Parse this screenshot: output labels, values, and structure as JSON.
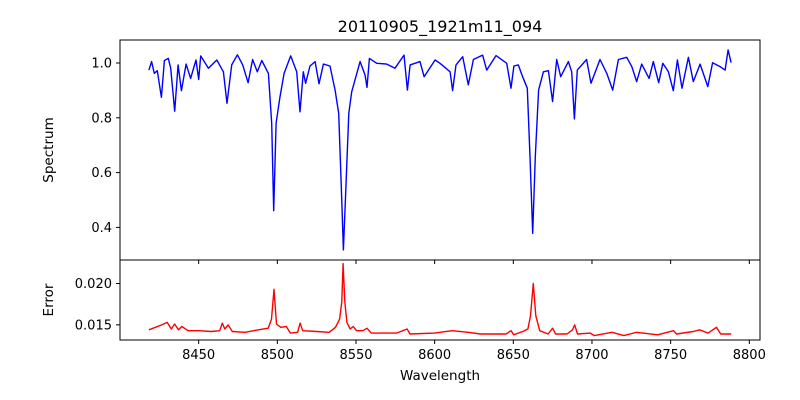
{
  "chart_data": [
    {
      "type": "line",
      "panel": "top",
      "title": "20110905_1921m11_094",
      "xlabel": "",
      "ylabel": "Spectrum",
      "xlim": [
        8400,
        8806.8
      ],
      "ylim": [
        0.281,
        1.084
      ],
      "xticks": [
        8450,
        8500,
        8550,
        8600,
        8650,
        8700,
        8750,
        8800
      ],
      "xtick_labels_shown": false,
      "yticks": [
        0.4,
        0.6,
        0.8,
        1.0
      ],
      "ytick_labels": [
        "0.4",
        "0.6",
        "0.8",
        "1.0"
      ],
      "grid": false,
      "series": [
        {
          "name": "Spectrum",
          "color": "#0000ff",
          "points": [
            [
              8418.4,
              0.974
            ],
            [
              8420.1,
              1.005
            ],
            [
              8421.8,
              0.962
            ],
            [
              8423.7,
              0.972
            ],
            [
              8426.3,
              0.875
            ],
            [
              8428.2,
              1.009
            ],
            [
              8430.7,
              1.017
            ],
            [
              8432.2,
              0.981
            ],
            [
              8434.8,
              0.824
            ],
            [
              8436.9,
              0.993
            ],
            [
              8439.0,
              0.899
            ],
            [
              8442.0,
              0.996
            ],
            [
              8444.9,
              0.944
            ],
            [
              8448.3,
              1.011
            ],
            [
              8450.0,
              0.94
            ],
            [
              8451.3,
              1.026
            ],
            [
              8456.2,
              0.981
            ],
            [
              8461.5,
              1.011
            ],
            [
              8465.7,
              0.968
            ],
            [
              8468.0,
              0.853
            ],
            [
              8471.0,
              0.993
            ],
            [
              8474.6,
              1.03
            ],
            [
              8478.0,
              0.993
            ],
            [
              8481.4,
              0.928
            ],
            [
              8484.3,
              1.013
            ],
            [
              8487.3,
              0.968
            ],
            [
              8490.1,
              1.009
            ],
            [
              8494.3,
              0.962
            ],
            [
              8496.4,
              0.78
            ],
            [
              8497.7,
              0.461
            ],
            [
              8499.2,
              0.78
            ],
            [
              8501.7,
              0.877
            ],
            [
              8504.3,
              0.962
            ],
            [
              8508.5,
              1.026
            ],
            [
              8512.3,
              0.968
            ],
            [
              8514.4,
              0.822
            ],
            [
              8516.5,
              0.968
            ],
            [
              8518.0,
              0.926
            ],
            [
              8520.8,
              0.989
            ],
            [
              8524.0,
              1.005
            ],
            [
              8526.5,
              0.924
            ],
            [
              8529.3,
              0.996
            ],
            [
              8533.5,
              0.989
            ],
            [
              8536.7,
              0.901
            ],
            [
              8539.0,
              0.816
            ],
            [
              8540.7,
              0.537
            ],
            [
              8542.0,
              0.318
            ],
            [
              8543.5,
              0.537
            ],
            [
              8545.4,
              0.816
            ],
            [
              8547.3,
              0.895
            ],
            [
              8550.5,
              0.962
            ],
            [
              8552.6,
              1.005
            ],
            [
              8555.8,
              0.956
            ],
            [
              8557.0,
              0.911
            ],
            [
              8558.5,
              1.017
            ],
            [
              8563.2,
              0.999
            ],
            [
              8569.5,
              0.996
            ],
            [
              8574.8,
              0.981
            ],
            [
              8580.5,
              1.029
            ],
            [
              8582.7,
              0.901
            ],
            [
              8584.4,
              0.993
            ],
            [
              8590.7,
              1.005
            ],
            [
              8593.3,
              0.95
            ],
            [
              8600.3,
              1.011
            ],
            [
              8603.4,
              0.999
            ],
            [
              8609.8,
              0.968
            ],
            [
              8611.4,
              0.899
            ],
            [
              8613.6,
              0.993
            ],
            [
              8617.8,
              1.023
            ],
            [
              8621.4,
              0.92
            ],
            [
              8624.6,
              1.013
            ],
            [
              8630.5,
              1.029
            ],
            [
              8633.1,
              0.974
            ],
            [
              8639.0,
              1.027
            ],
            [
              8645.8,
              0.999
            ],
            [
              8648.5,
              0.908
            ],
            [
              8650.4,
              0.989
            ],
            [
              8653.2,
              0.993
            ],
            [
              8655.9,
              0.95
            ],
            [
              8658.9,
              0.908
            ],
            [
              8660.6,
              0.658
            ],
            [
              8662.3,
              0.378
            ],
            [
              8664.0,
              0.658
            ],
            [
              8666.1,
              0.901
            ],
            [
              8669.1,
              0.968
            ],
            [
              8672.3,
              0.972
            ],
            [
              8675.0,
              0.859
            ],
            [
              8677.6,
              1.013
            ],
            [
              8680.1,
              0.95
            ],
            [
              8685.0,
              1.005
            ],
            [
              8687.1,
              0.968
            ],
            [
              8688.8,
              0.796
            ],
            [
              8690.7,
              0.974
            ],
            [
              8696.6,
              1.013
            ],
            [
              8699.4,
              0.926
            ],
            [
              8705.1,
              1.013
            ],
            [
              8709.4,
              0.962
            ],
            [
              8713.2,
              0.901
            ],
            [
              8716.8,
              1.013
            ],
            [
              8722.1,
              1.021
            ],
            [
              8725.3,
              0.987
            ],
            [
              8728.4,
              0.932
            ],
            [
              8731.6,
              0.996
            ],
            [
              8736.3,
              0.944
            ],
            [
              8739.0,
              1.005
            ],
            [
              8742.4,
              0.928
            ],
            [
              8745.0,
              0.999
            ],
            [
              8748.6,
              0.968
            ],
            [
              8751.7,
              0.899
            ],
            [
              8754.3,
              1.011
            ],
            [
              8757.2,
              0.908
            ],
            [
              8761.3,
              1.021
            ],
            [
              8764.4,
              0.932
            ],
            [
              8768.7,
              0.996
            ],
            [
              8773.6,
              0.914
            ],
            [
              8776.7,
              1.001
            ],
            [
              8781.4,
              0.987
            ],
            [
              8784.6,
              0.974
            ],
            [
              8786.5,
              1.048
            ],
            [
              8788.4,
              1.001
            ]
          ]
        }
      ]
    },
    {
      "type": "line",
      "panel": "bottom",
      "xlabel": "Wavelength",
      "ylabel": "Error",
      "xlim": [
        8400,
        8806.8
      ],
      "ylim": [
        0.01317,
        0.02284
      ],
      "xticks": [
        8450,
        8500,
        8550,
        8600,
        8650,
        8700,
        8750,
        8800
      ],
      "xtick_labels": [
        "8450",
        "8500",
        "8550",
        "8600",
        "8650",
        "8700",
        "8750",
        "8800"
      ],
      "yticks": [
        0.015,
        0.02
      ],
      "ytick_labels": [
        "0.015",
        "0.020"
      ],
      "grid": false,
      "series": [
        {
          "name": "Error",
          "color": "#ff0000",
          "points": [
            [
              8418.4,
              0.0144
            ],
            [
              8426.5,
              0.015
            ],
            [
              8430.0,
              0.0153
            ],
            [
              8432.6,
              0.0145
            ],
            [
              8434.7,
              0.0151
            ],
            [
              8437.2,
              0.0144
            ],
            [
              8439.3,
              0.0148
            ],
            [
              8443.3,
              0.0143
            ],
            [
              8450.0,
              0.0143
            ],
            [
              8458.0,
              0.0142
            ],
            [
              8463.4,
              0.0143
            ],
            [
              8465.0,
              0.0152
            ],
            [
              8466.6,
              0.0145
            ],
            [
              8468.7,
              0.015
            ],
            [
              8471.4,
              0.0142
            ],
            [
              8479.4,
              0.0141
            ],
            [
              8488.0,
              0.0144
            ],
            [
              8494.2,
              0.0146
            ],
            [
              8496.3,
              0.0157
            ],
            [
              8497.9,
              0.0193
            ],
            [
              8499.5,
              0.0151
            ],
            [
              8502.2,
              0.0147
            ],
            [
              8505.7,
              0.0148
            ],
            [
              8508.3,
              0.014
            ],
            [
              8512.9,
              0.0141
            ],
            [
              8514.5,
              0.0152
            ],
            [
              8516.1,
              0.0143
            ],
            [
              8524.9,
              0.0142
            ],
            [
              8533.0,
              0.0141
            ],
            [
              8537.0,
              0.0147
            ],
            [
              8539.6,
              0.0157
            ],
            [
              8541.0,
              0.0178
            ],
            [
              8541.8,
              0.0224
            ],
            [
              8542.9,
              0.0178
            ],
            [
              8544.2,
              0.0153
            ],
            [
              8546.3,
              0.0145
            ],
            [
              8548.2,
              0.0148
            ],
            [
              8550.3,
              0.0143
            ],
            [
              8554.4,
              0.0143
            ],
            [
              8557.0,
              0.0146
            ],
            [
              8559.7,
              0.014
            ],
            [
              8575.8,
              0.014
            ],
            [
              8582.5,
              0.0145
            ],
            [
              8584.3,
              0.0139
            ],
            [
              8599.9,
              0.014
            ],
            [
              8611.1,
              0.0143
            ],
            [
              8621.3,
              0.0141
            ],
            [
              8629.3,
              0.0139
            ],
            [
              8645.3,
              0.0139
            ],
            [
              8648.6,
              0.0143
            ],
            [
              8650.2,
              0.0138
            ],
            [
              8656.0,
              0.0142
            ],
            [
              8659.3,
              0.0145
            ],
            [
              8660.9,
              0.0161
            ],
            [
              8662.7,
              0.02
            ],
            [
              8664.3,
              0.0161
            ],
            [
              8666.8,
              0.0143
            ],
            [
              8672.1,
              0.0139
            ],
            [
              8675.0,
              0.0146
            ],
            [
              8676.9,
              0.0139
            ],
            [
              8684.1,
              0.0139
            ],
            [
              8687.6,
              0.0144
            ],
            [
              8689.0,
              0.015
            ],
            [
              8690.8,
              0.0139
            ],
            [
              8698.9,
              0.014
            ],
            [
              8701.5,
              0.0137
            ],
            [
              8712.8,
              0.0141
            ],
            [
              8720.3,
              0.0137
            ],
            [
              8728.3,
              0.0141
            ],
            [
              8741.7,
              0.0138
            ],
            [
              8751.9,
              0.0143
            ],
            [
              8753.8,
              0.0139
            ],
            [
              8764.4,
              0.0142
            ],
            [
              8768.4,
              0.0144
            ],
            [
              8773.8,
              0.014
            ],
            [
              8779.1,
              0.0147
            ],
            [
              8781.8,
              0.0139
            ],
            [
              8788.5,
              0.0139
            ]
          ]
        }
      ]
    }
  ]
}
